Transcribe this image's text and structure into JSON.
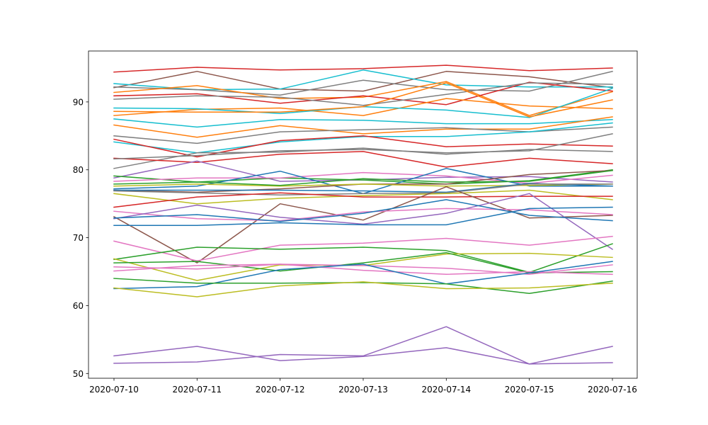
{
  "chart_data": {
    "type": "line",
    "title": "",
    "xlabel": "",
    "ylabel": "",
    "x": [
      "2020-07-10",
      "2020-07-11",
      "2020-07-12",
      "2020-07-13",
      "2020-07-14",
      "2020-07-15",
      "2020-07-16"
    ],
    "yticks": [
      50,
      60,
      70,
      80,
      90
    ],
    "ylim": [
      49.3,
      97.5
    ],
    "grid": false,
    "legend": "none",
    "series": [
      {
        "color": "#d62728",
        "values": [
          94.4,
          95.1,
          94.7,
          94.9,
          95.4,
          94.6,
          95.0
        ]
      },
      {
        "color": "#8c564b",
        "values": [
          92.1,
          94.5,
          91.9,
          91.6,
          94.5,
          93.7,
          92.1
        ]
      },
      {
        "color": "#17becf",
        "values": [
          92.7,
          91.8,
          91.9,
          94.7,
          92.5,
          92.2,
          92.2
        ]
      },
      {
        "color": "#7f7f7f",
        "values": [
          92.2,
          91.8,
          91.0,
          93.2,
          91.8,
          91.6,
          94.5
        ]
      },
      {
        "color": "#ff7f0e",
        "values": [
          91.4,
          92.4,
          90.5,
          90.7,
          93.0,
          88.0,
          91.5
        ]
      },
      {
        "color": "#d62728",
        "values": [
          90.9,
          91.2,
          89.8,
          90.9,
          89.6,
          92.9,
          91.6
        ]
      },
      {
        "color": "#7f7f7f",
        "values": [
          90.4,
          90.9,
          90.7,
          89.5,
          91.1,
          92.8,
          92.6
        ]
      },
      {
        "color": "#ff7f0e",
        "values": [
          88.0,
          88.9,
          89.1,
          88.0,
          90.5,
          89.4,
          89.0
        ]
      },
      {
        "color": "#17becf",
        "values": [
          89.1,
          89.0,
          88.3,
          89.3,
          88.8,
          87.7,
          92.0
        ]
      },
      {
        "color": "#ff7f0e",
        "values": [
          88.6,
          88.5,
          88.5,
          89.3,
          92.8,
          87.8,
          90.3
        ]
      },
      {
        "color": "#17becf",
        "values": [
          87.5,
          86.3,
          87.4,
          87.3,
          86.8,
          86.8,
          87.4
        ]
      },
      {
        "color": "#ff7f0e",
        "values": [
          86.6,
          84.8,
          86.5,
          85.3,
          86.0,
          86.0,
          87.8
        ]
      },
      {
        "color": "#7f7f7f",
        "values": [
          85.0,
          83.9,
          85.6,
          85.9,
          86.2,
          85.6,
          86.3
        ]
      },
      {
        "color": "#17becf",
        "values": [
          84.1,
          82.5,
          84.1,
          84.9,
          84.9,
          85.6,
          86.9
        ]
      },
      {
        "color": "#d62728",
        "values": [
          84.5,
          81.9,
          84.3,
          85.0,
          83.4,
          83.8,
          83.5
        ]
      },
      {
        "color": "#7f7f7f",
        "values": [
          80.2,
          82.5,
          82.6,
          83.2,
          82.3,
          83.0,
          82.7
        ]
      },
      {
        "color": "#d62728",
        "values": [
          81.7,
          81.1,
          82.3,
          82.7,
          80.4,
          81.7,
          80.9
        ]
      },
      {
        "color": "#7f7f7f",
        "values": [
          81.6,
          82.1,
          82.8,
          83.0,
          82.5,
          82.8,
          85.3
        ]
      },
      {
        "color": "#9467bd",
        "values": [
          78.8,
          81.3,
          78.3,
          78.5,
          78.9,
          79.0,
          78.2
        ]
      },
      {
        "color": "#2ca02c",
        "values": [
          79.1,
          78.2,
          78.8,
          78.5,
          77.9,
          78.4,
          80.0
        ]
      },
      {
        "color": "#e377c2",
        "values": [
          78.3,
          78.8,
          78.8,
          79.6,
          79.1,
          78.0,
          79.2
        ]
      },
      {
        "color": "#1f77b4",
        "values": [
          77.2,
          77.6,
          79.8,
          76.5,
          80.2,
          77.6,
          77.6
        ]
      },
      {
        "color": "#8c564b",
        "values": [
          77.0,
          76.7,
          77.2,
          77.9,
          77.9,
          79.3,
          79.9
        ]
      },
      {
        "color": "#bcbd22",
        "values": [
          77.6,
          77.9,
          77.6,
          77.9,
          77.6,
          77.7,
          77.9
        ]
      },
      {
        "color": "#2ca02c",
        "values": [
          77.9,
          78.2,
          77.7,
          78.7,
          78.2,
          78.3,
          79.9
        ]
      },
      {
        "color": "#1f77b4",
        "values": [
          77.0,
          77.0,
          77.0,
          76.9,
          76.7,
          78.0,
          77.6
        ]
      },
      {
        "color": "#7f7f7f",
        "values": [
          76.9,
          76.6,
          76.3,
          76.5,
          76.6,
          77.9,
          77.9
        ]
      },
      {
        "color": "#bcbd22",
        "values": [
          76.5,
          75.0,
          75.8,
          76.2,
          76.5,
          77.0,
          75.6
        ]
      },
      {
        "color": "#d62728",
        "values": [
          74.5,
          76.0,
          76.6,
          76.0,
          76.0,
          76.1,
          76.1
        ]
      },
      {
        "color": "#8c564b",
        "values": [
          73.1,
          66.3,
          75.0,
          72.6,
          77.5,
          72.9,
          73.3
        ]
      },
      {
        "color": "#e377c2",
        "values": [
          73.9,
          72.8,
          72.5,
          73.8,
          74.3,
          74.1,
          73.4
        ]
      },
      {
        "color": "#9467bd",
        "values": [
          72.8,
          74.8,
          73.0,
          72.0,
          73.6,
          76.5,
          68.3
        ]
      },
      {
        "color": "#1f77b4",
        "values": [
          72.9,
          73.4,
          72.4,
          73.6,
          75.6,
          73.3,
          72.5
        ]
      },
      {
        "color": "#1f77b4",
        "values": [
          71.8,
          71.8,
          72.2,
          71.9,
          71.9,
          74.3,
          74.5
        ]
      },
      {
        "color": "#e377c2",
        "values": [
          69.5,
          66.6,
          68.9,
          69.2,
          69.9,
          68.9,
          70.2
        ]
      },
      {
        "color": "#2ca02c",
        "values": [
          66.8,
          68.6,
          68.3,
          68.6,
          68.1,
          64.9,
          69.1
        ]
      },
      {
        "color": "#bcbd22",
        "values": [
          66.9,
          63.7,
          66.0,
          65.9,
          67.6,
          67.7,
          67.1
        ]
      },
      {
        "color": "#2ca02c",
        "values": [
          66.3,
          66.5,
          65.1,
          66.3,
          67.8,
          64.8,
          65.0
        ]
      },
      {
        "color": "#e377c2",
        "values": [
          65.1,
          65.9,
          66.1,
          65.2,
          64.6,
          65.0,
          64.6
        ]
      },
      {
        "color": "#e377c2",
        "values": [
          65.7,
          65.4,
          66.1,
          65.9,
          65.5,
          64.6,
          66.0
        ]
      },
      {
        "color": "#1f77b4",
        "values": [
          62.5,
          62.8,
          65.3,
          66.1,
          63.2,
          64.8,
          66.5
        ]
      },
      {
        "color": "#2ca02c",
        "values": [
          64.0,
          63.3,
          63.3,
          63.4,
          63.2,
          61.8,
          63.6
        ]
      },
      {
        "color": "#bcbd22",
        "values": [
          62.6,
          61.3,
          62.9,
          63.5,
          62.5,
          62.6,
          63.3
        ]
      },
      {
        "color": "#9467bd",
        "values": [
          52.6,
          54.0,
          51.9,
          52.5,
          53.8,
          51.4,
          54.0
        ]
      },
      {
        "color": "#9467bd",
        "values": [
          51.5,
          51.7,
          52.8,
          52.6,
          56.9,
          51.4,
          51.6
        ]
      }
    ]
  }
}
